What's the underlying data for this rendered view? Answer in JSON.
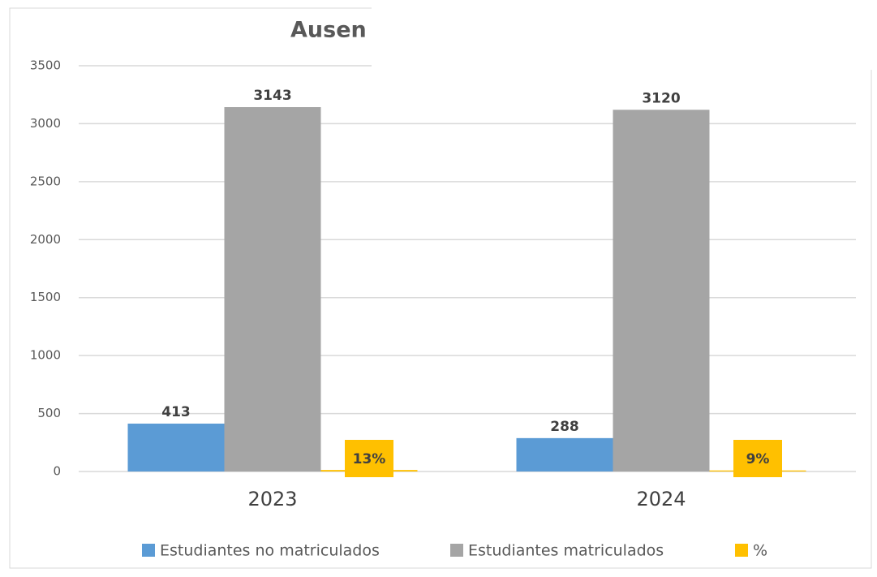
{
  "chart_data": {
    "type": "bar",
    "title": "Ausen",
    "categories": [
      "2023",
      "2024"
    ],
    "series": [
      {
        "name": "Estudiantes no matriculados",
        "color": "#5b9bd5",
        "values": [
          413,
          288
        ]
      },
      {
        "name": "Estudiantes matriculados",
        "color": "#a5a5a5",
        "values": [
          3143,
          3120
        ]
      },
      {
        "name": "%",
        "color": "#ffc000",
        "values": [
          13,
          9
        ],
        "value_labels": [
          "13%",
          "9%"
        ]
      }
    ],
    "ylim": [
      0,
      3500
    ],
    "yticks": [
      0,
      500,
      1000,
      1500,
      2000,
      2500,
      3000,
      3500
    ],
    "grid": true,
    "legend": "bottom"
  }
}
